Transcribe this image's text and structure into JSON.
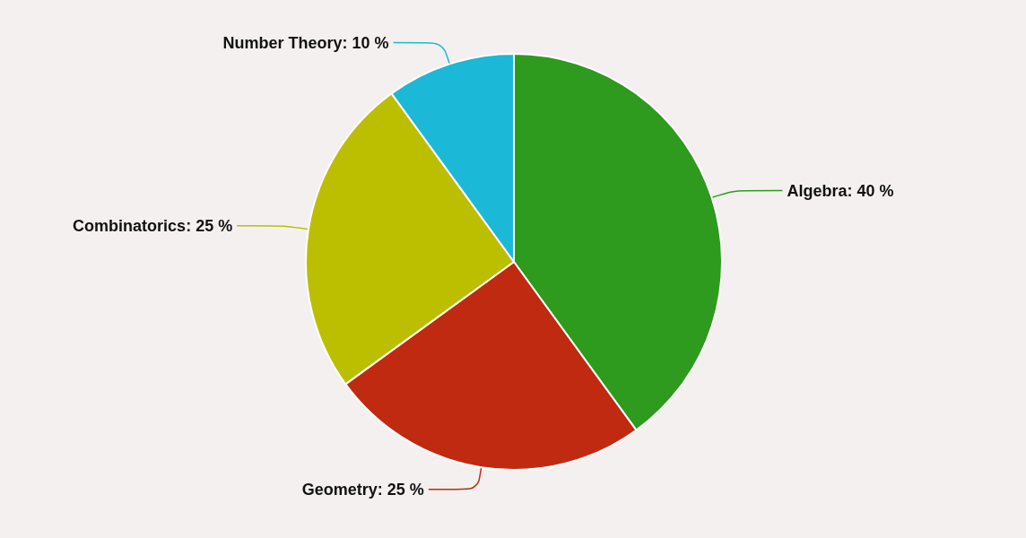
{
  "chart_data": {
    "type": "pie",
    "categories": [
      "Algebra",
      "Geometry",
      "Combinatorics",
      "Number Theory"
    ],
    "values": [
      40,
      25,
      25,
      10
    ],
    "value_labels": [
      "40 %",
      "25 %",
      "25 %",
      "10 %"
    ],
    "colors": [
      "#2e9a1e",
      "#bf2a10",
      "#bcbf00",
      "#1cb8d8"
    ],
    "legend": false
  }
}
